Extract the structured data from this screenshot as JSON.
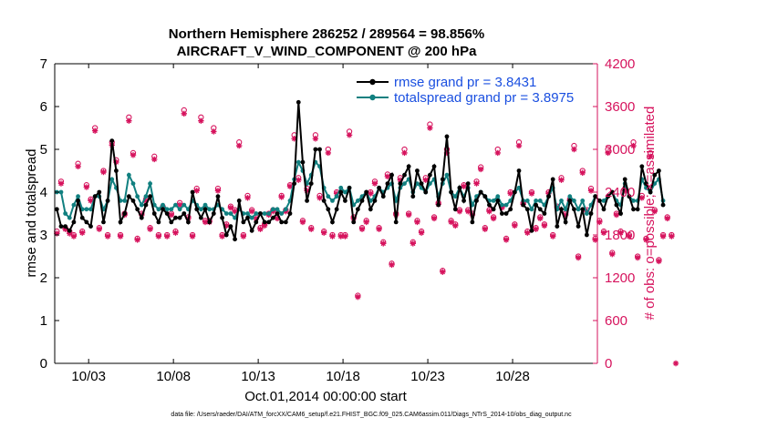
{
  "chart_data": {
    "type": "line",
    "title_line1": "Northern Hemisphere 286252 / 289564 = 98.856%",
    "title_line2": "AIRCRAFT_V_WIND_COMPONENT @ 200 hPa",
    "ylabel_left": "rmse and totalspread",
    "ylabel_right": "# of obs: o=possible; ×=assimilated",
    "xlabel": "Oct.01,2014 00:00:00 start",
    "footer": "data file: /Users/raeder/DAI/ATM_forcXX/CAM6_setup/f.e21.FHIST_BGC.f09_025.CAM6assim.011/Diags_NTrS_2014-10/obs_diag_output.nc",
    "x_range_days": [
      1.0,
      33.0
    ],
    "x_ticks": [
      {
        "day": 3,
        "label": "10/03"
      },
      {
        "day": 8,
        "label": "10/08"
      },
      {
        "day": 13,
        "label": "10/13"
      },
      {
        "day": 18,
        "label": "10/18"
      },
      {
        "day": 23,
        "label": "10/23"
      },
      {
        "day": 28,
        "label": "10/28"
      }
    ],
    "ylim_left": [
      0,
      7
    ],
    "yticks_left": [
      "0",
      "1",
      "2",
      "3",
      "4",
      "5",
      "6",
      "7"
    ],
    "ylim_right": [
      0,
      4200
    ],
    "yticks_right": [
      "0",
      "600",
      "1200",
      "1800",
      "2400",
      "3000",
      "3600",
      "4200"
    ],
    "colors": {
      "rmse": "#000000",
      "spread": "#118080",
      "obs": "#d6135d",
      "right_axis": "#d6135d",
      "legend_text": "#1a4fe0"
    },
    "series": [
      {
        "name": "rmse grand pr = 3.8431",
        "key": "rmse",
        "values": [
          3.6,
          3.2,
          3.2,
          3.1,
          3.3,
          3.8,
          3.4,
          3.3,
          3.2,
          3.9,
          4.0,
          3.3,
          3.8,
          5.2,
          4.5,
          3.3,
          3.5,
          3.9,
          3.8,
          3.6,
          3.4,
          3.7,
          3.9,
          3.5,
          3.3,
          3.6,
          3.5,
          3.3,
          3.4,
          3.4,
          3.5,
          3.3,
          4.0,
          3.6,
          3.4,
          3.6,
          3.3,
          3.5,
          3.9,
          3.4,
          3.0,
          3.2,
          2.9,
          3.8,
          3.3,
          3.4,
          3.1,
          3.3,
          3.5,
          3.3,
          3.3,
          3.4,
          3.5,
          3.3,
          3.3,
          3.5,
          4.2,
          6.1,
          4.7,
          3.8,
          4.2,
          5.0,
          5.0,
          3.8,
          3.6,
          3.3,
          3.6,
          4.0,
          3.8,
          4.1,
          3.3,
          3.6,
          3.8,
          4.0,
          3.6,
          3.8,
          4.1,
          3.9,
          4.2,
          4.4,
          3.3,
          4.2,
          4.4,
          4.6,
          3.9,
          4.5,
          4.2,
          4.0,
          4.4,
          4.6,
          3.7,
          4.3,
          5.3,
          4.0,
          3.6,
          4.1,
          3.8,
          4.2,
          3.3,
          3.8,
          4.0,
          3.9,
          3.7,
          3.6,
          3.8,
          3.5,
          3.5,
          3.6,
          4.0,
          4.5,
          3.7,
          3.6,
          3.1,
          3.7,
          3.6,
          3.5,
          3.9,
          4.3,
          3.2,
          3.6,
          3.3,
          3.8,
          3.6,
          3.2,
          3.6,
          3.0,
          3.5,
          3.9,
          3.8,
          3.6,
          3.9,
          4.0,
          3.7,
          3.5,
          4.3,
          3.9,
          3.6,
          3.6,
          4.6,
          4.2,
          4.0,
          4.4,
          4.5,
          3.7
        ]
      },
      {
        "name": "totalspread grand pr = 3.8975",
        "key": "spread",
        "values": [
          4.0,
          4.0,
          3.5,
          3.4,
          3.7,
          3.9,
          3.6,
          3.6,
          3.6,
          3.9,
          3.9,
          3.6,
          3.8,
          4.3,
          4.1,
          3.8,
          3.8,
          4.4,
          4.2,
          3.9,
          3.7,
          3.9,
          4.2,
          3.7,
          3.6,
          3.7,
          3.6,
          3.6,
          3.7,
          3.6,
          3.7,
          3.6,
          3.8,
          3.7,
          3.6,
          3.7,
          3.6,
          3.6,
          3.7,
          3.6,
          3.5,
          3.5,
          3.4,
          3.6,
          3.5,
          3.5,
          3.4,
          3.5,
          3.5,
          3.5,
          3.5,
          3.6,
          3.6,
          3.5,
          3.6,
          3.8,
          4.3,
          4.7,
          4.5,
          4.2,
          4.4,
          4.7,
          4.6,
          4.1,
          3.9,
          3.8,
          3.9,
          4.1,
          4.0,
          4.1,
          3.7,
          3.8,
          3.9,
          4.0,
          3.8,
          3.9,
          4.1,
          4.0,
          4.1,
          4.2,
          3.8,
          4.1,
          4.2,
          4.3,
          4.0,
          4.2,
          4.1,
          4.0,
          4.2,
          4.3,
          3.9,
          4.2,
          4.4,
          4.0,
          3.9,
          4.1,
          3.9,
          4.1,
          3.7,
          3.9,
          4.0,
          3.9,
          3.8,
          3.8,
          3.9,
          3.7,
          3.7,
          3.8,
          4.0,
          4.1,
          3.8,
          3.8,
          3.6,
          3.8,
          3.8,
          3.7,
          3.9,
          4.1,
          3.6,
          3.8,
          3.6,
          3.9,
          3.8,
          3.6,
          3.8,
          3.5,
          3.7,
          3.9,
          3.8,
          3.8,
          3.9,
          4.0,
          3.8,
          3.7,
          4.2,
          3.9,
          3.8,
          3.8,
          4.3,
          4.1,
          4.0,
          4.2,
          4.3,
          3.8
        ]
      }
    ],
    "obs_count_series": [
      {
        "name": "possible",
        "marker": "o",
        "values": [
          1850,
          2550,
          1900,
          1850,
          1800,
          2800,
          1850,
          2500,
          2300,
          3300,
          1900,
          2700,
          1800,
          3100,
          2850,
          1800,
          2100,
          3450,
          2950,
          1750,
          2100,
          2300,
          1900,
          2900,
          1800,
          2200,
          1800,
          2100,
          1850,
          2250,
          3550,
          2050,
          1800,
          2450,
          3450,
          2000,
          2000,
          3300,
          2450,
          1800,
          1950,
          2200,
          2150,
          3100,
          1800,
          2350,
          2150,
          2050,
          1900,
          1950,
          2100,
          2150,
          2050,
          2350,
          2150,
          2500,
          3200,
          2600,
          2000,
          2450,
          1900,
          3200,
          2350,
          1850,
          3000,
          1800,
          2400,
          1800,
          1800,
          3250,
          2050,
          950,
          1900,
          2000,
          2400,
          2550,
          1900,
          1700,
          2650,
          1400,
          2100,
          2600,
          3000,
          2100,
          1700,
          2000,
          1850,
          2600,
          3350,
          2050,
          2250,
          1300,
          3000,
          2000,
          1950,
          2150,
          2500,
          2150,
          2100,
          2550,
          2750,
          1900,
          2150,
          2050,
          3000,
          2200,
          1750,
          2400,
          1950,
          3100,
          2250,
          1850,
          2400,
          1900,
          2050,
          1950,
          2400,
          1800,
          2200,
          2600,
          2100,
          2300,
          3050,
          1500,
          2700,
          2150,
          2450,
          1750,
          2000,
          1850,
          3000,
          1550,
          2100,
          1850,
          2450,
          1800,
          3100,
          1500,
          2350,
          1750,
          2950,
          2150,
          1450,
          1800,
          2050,
          1800
        ]
      },
      {
        "name": "assimilated",
        "marker": "*",
        "values": [
          1820,
          2520,
          1880,
          1820,
          1780,
          2760,
          1830,
          2470,
          2280,
          3260,
          1880,
          2680,
          1780,
          3060,
          2820,
          1780,
          2080,
          3400,
          2920,
          1730,
          2080,
          2280,
          1880,
          2860,
          1780,
          2180,
          1780,
          2080,
          1830,
          2220,
          3500,
          2030,
          1780,
          2420,
          3400,
          1980,
          1980,
          3250,
          2420,
          1780,
          1930,
          2180,
          2130,
          3050,
          1780,
          2320,
          2130,
          2030,
          1880,
          1930,
          2080,
          2130,
          2030,
          2330,
          2130,
          2480,
          3150,
          2570,
          1980,
          2420,
          1880,
          3150,
          2320,
          1830,
          2950,
          1780,
          2380,
          1780,
          1780,
          3200,
          2030,
          930,
          1880,
          1980,
          2380,
          2520,
          1880,
          1680,
          2620,
          1380,
          2080,
          2570,
          2950,
          2080,
          1680,
          1980,
          1830,
          2570,
          3300,
          2030,
          2230,
          1280,
          2950,
          1980,
          1930,
          2130,
          2480,
          2130,
          2080,
          2520,
          2720,
          1880,
          2130,
          2030,
          2950,
          2180,
          1730,
          2380,
          1930,
          3050,
          2230,
          1830,
          2380,
          1880,
          2030,
          1930,
          2380,
          1780,
          2180,
          2570,
          2080,
          2280,
          3000,
          1480,
          2670,
          2130,
          2420,
          1730,
          1980,
          1830,
          2950,
          1530,
          2080,
          1830,
          2420,
          1780,
          3050,
          1480,
          2320,
          1730,
          2900,
          2130,
          1430,
          1780,
          2030,
          1780,
          0
        ]
      }
    ]
  }
}
